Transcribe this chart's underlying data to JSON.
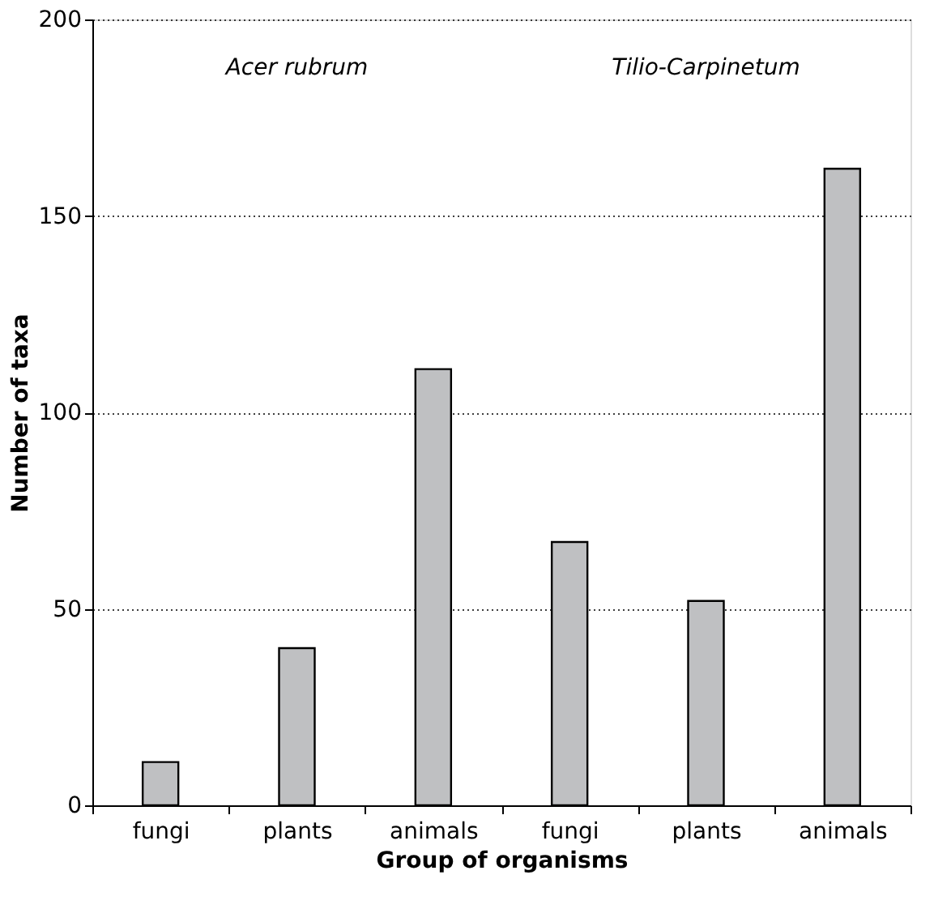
{
  "chart_data": {
    "type": "bar",
    "xlabel": "Group of organisms",
    "ylabel": "Number of taxa",
    "categories": [
      "fungi",
      "plants",
      "animals",
      "fungi",
      "plants",
      "animals"
    ],
    "values": [
      11,
      40,
      111,
      67,
      52,
      162
    ],
    "color": "#bfc0c2",
    "ylim": [
      0,
      200
    ],
    "yticks": [
      0,
      50,
      100,
      150,
      200
    ],
    "grid": "y",
    "annotations": [
      "Acer rubrum",
      "Tilio-Carpinetum"
    ]
  }
}
